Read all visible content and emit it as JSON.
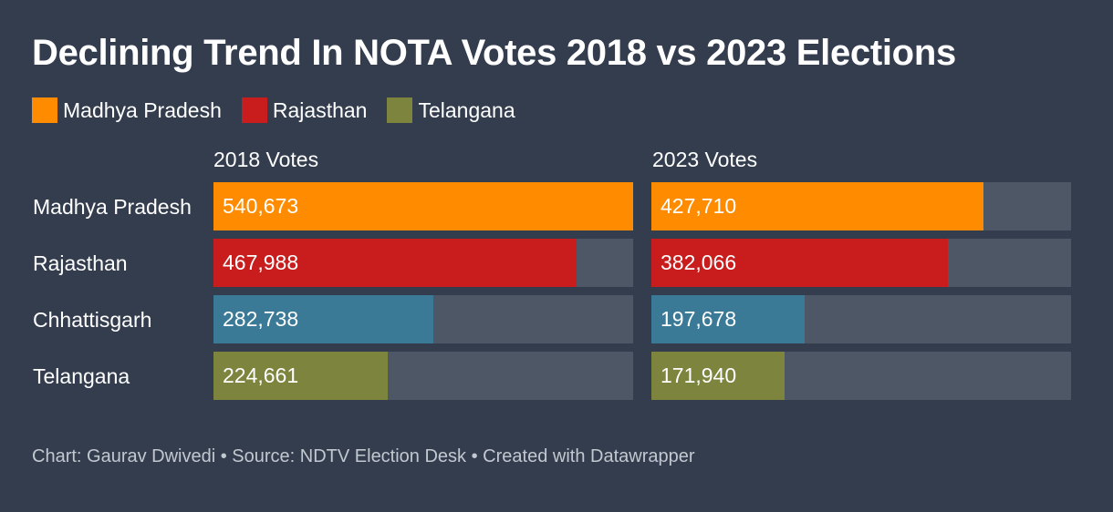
{
  "title": "Declining Trend In NOTA Votes 2018 vs 2023 Elections",
  "legend": [
    {
      "label": "Madhya Pradesh",
      "color": "#ff8c00"
    },
    {
      "label": "Rajasthan",
      "color": "#c91c1c"
    },
    {
      "label": "Telangana",
      "color": "#7d843d"
    }
  ],
  "footer": "Chart: Gaurav Dwivedi • Source: NDTV Election Desk • Created with Datawrapper",
  "chart_data": {
    "type": "bar",
    "orientation": "horizontal",
    "title": "Declining Trend In NOTA Votes 2018 vs 2023 Elections",
    "categories": [
      "Madhya Pradesh",
      "Rajasthan",
      "Chhattisgarh",
      "Telangana"
    ],
    "colors": [
      "#ff8c00",
      "#c91c1c",
      "#3a7a96",
      "#7d843d"
    ],
    "xlim": [
      0,
      540673
    ],
    "series": [
      {
        "name": "2018 Votes",
        "values": [
          540673,
          467988,
          282738,
          224661
        ],
        "labels": [
          "540,673",
          "467,988",
          "282,738",
          "224,661"
        ]
      },
      {
        "name": "2023 Votes",
        "values": [
          427710,
          382066,
          197678,
          171940
        ],
        "labels": [
          "427,710",
          "382,066",
          "197,678",
          "171,940"
        ]
      }
    ]
  }
}
